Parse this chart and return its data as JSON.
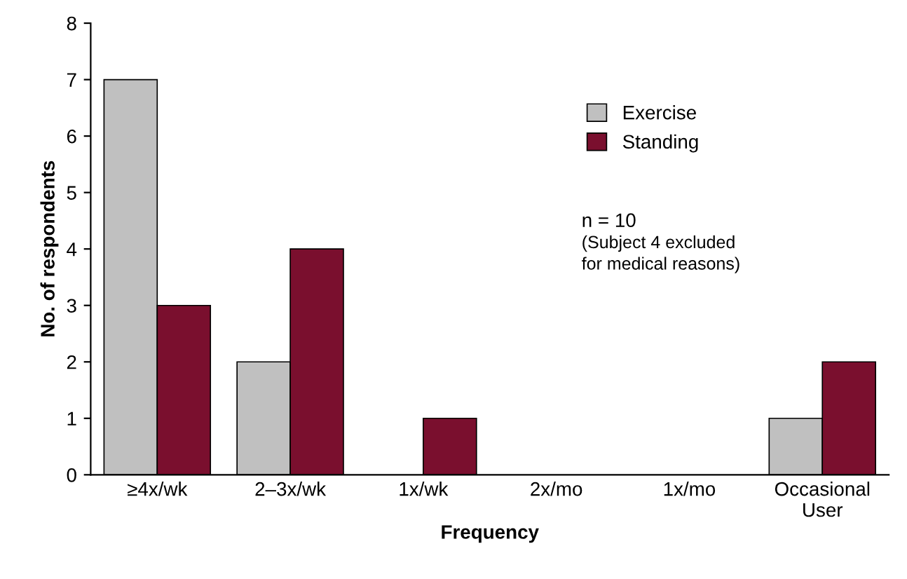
{
  "chart_data": {
    "type": "bar",
    "xlabel": "Frequency",
    "ylabel": "No. of respondents",
    "categories": [
      "≥4x/wk",
      "2–3x/wk",
      "1x/wk",
      "2x/mo",
      "1x/mo",
      "Occasional\nUser"
    ],
    "series": [
      {
        "name": "Exercise",
        "color": "#c0c0c0",
        "values": [
          7,
          2,
          0,
          0,
          0,
          1
        ]
      },
      {
        "name": "Standing",
        "color": "#7a0f2e",
        "values": [
          3,
          4,
          1,
          0,
          0,
          2
        ]
      }
    ],
    "ylim": [
      0,
      8
    ],
    "yticks": [
      0,
      1,
      2,
      3,
      4,
      5,
      6,
      7,
      8
    ],
    "grid": false,
    "legend": "top right",
    "annotations": [
      "n = 10",
      "(Subject 4 excluded\nfor medical reasons)"
    ]
  }
}
